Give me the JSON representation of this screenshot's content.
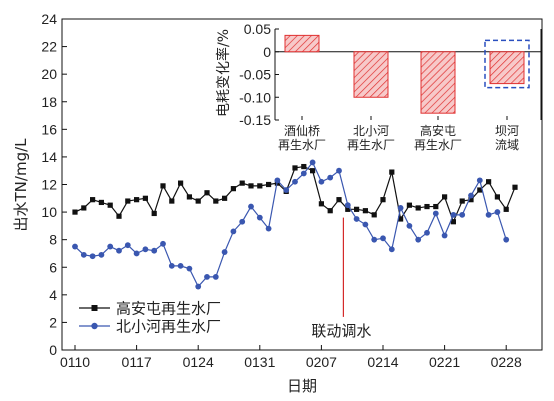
{
  "chart_data": [
    {
      "type": "line",
      "xlabel": "日期",
      "ylabel": "出水TN/mg/L",
      "ylim": [
        0,
        24
      ],
      "y_ticks": [
        "0",
        "2",
        "4",
        "6",
        "8",
        "10",
        "12",
        "14",
        "16",
        "18",
        "20",
        "22",
        "24"
      ],
      "x_tick_labels": [
        "0110",
        "0117",
        "0124",
        "0131",
        "0207",
        "0214",
        "0221",
        "0228"
      ],
      "annotation": "联动调水",
      "legend_position": "bottom-left",
      "grid": false,
      "series": [
        {
          "name": "高安屯再生水厂",
          "color": "#111111",
          "marker": "square",
          "values": [
            10.0,
            10.3,
            10.9,
            10.7,
            10.5,
            9.7,
            10.8,
            10.9,
            11.0,
            9.9,
            11.9,
            10.8,
            12.1,
            11.1,
            10.8,
            11.4,
            10.8,
            11.0,
            11.7,
            12.1,
            11.9,
            11.9,
            12.0,
            12.1,
            11.5,
            13.2,
            13.3,
            13.0,
            10.6,
            10.1,
            10.9,
            10.2,
            10.2,
            10.1,
            9.8,
            10.9,
            12.9,
            9.5,
            10.5,
            10.3,
            10.4,
            10.4,
            11.1,
            9.3,
            10.8,
            10.9,
            11.6,
            12.2,
            11.1,
            10.2,
            11.8
          ]
        },
        {
          "name": "北小河再生水厂",
          "color": "#3a57b0",
          "marker": "circle",
          "values": [
            7.5,
            6.9,
            6.8,
            6.9,
            7.5,
            7.2,
            7.6,
            7.0,
            7.3,
            7.2,
            7.7,
            6.1,
            6.1,
            5.9,
            4.6,
            5.3,
            5.3,
            7.1,
            8.6,
            9.3,
            10.4,
            9.6,
            8.8,
            12.3,
            11.6,
            12.2,
            12.8,
            13.6,
            12.2,
            12.5,
            13.0,
            10.5,
            9.5,
            9.1,
            8.0,
            8.1,
            7.3,
            10.3,
            9.0,
            8.0,
            8.5,
            9.9,
            8.3,
            9.8,
            9.8,
            11.2,
            12.3,
            9.8,
            10.0,
            8.0,
            null
          ]
        }
      ]
    },
    {
      "type": "bar",
      "ylabel": "电耗变化率/%",
      "ylim": [
        -0.15,
        0.05
      ],
      "y_ticks": [
        "0.05",
        "0",
        "-0.05",
        "-0.10",
        "-0.15"
      ],
      "categories": [
        "酒仙桥\n再生水厂",
        "北小河\n再生水厂",
        "高安屯\n再生水厂",
        "坝河\n流域"
      ],
      "values": [
        0.036,
        -0.1,
        -0.135,
        -0.07
      ],
      "bar_fill": "#f7c9c9",
      "bar_stroke": "#e03030",
      "highlight_last": true,
      "highlight_color": "#2a4fbf"
    }
  ]
}
